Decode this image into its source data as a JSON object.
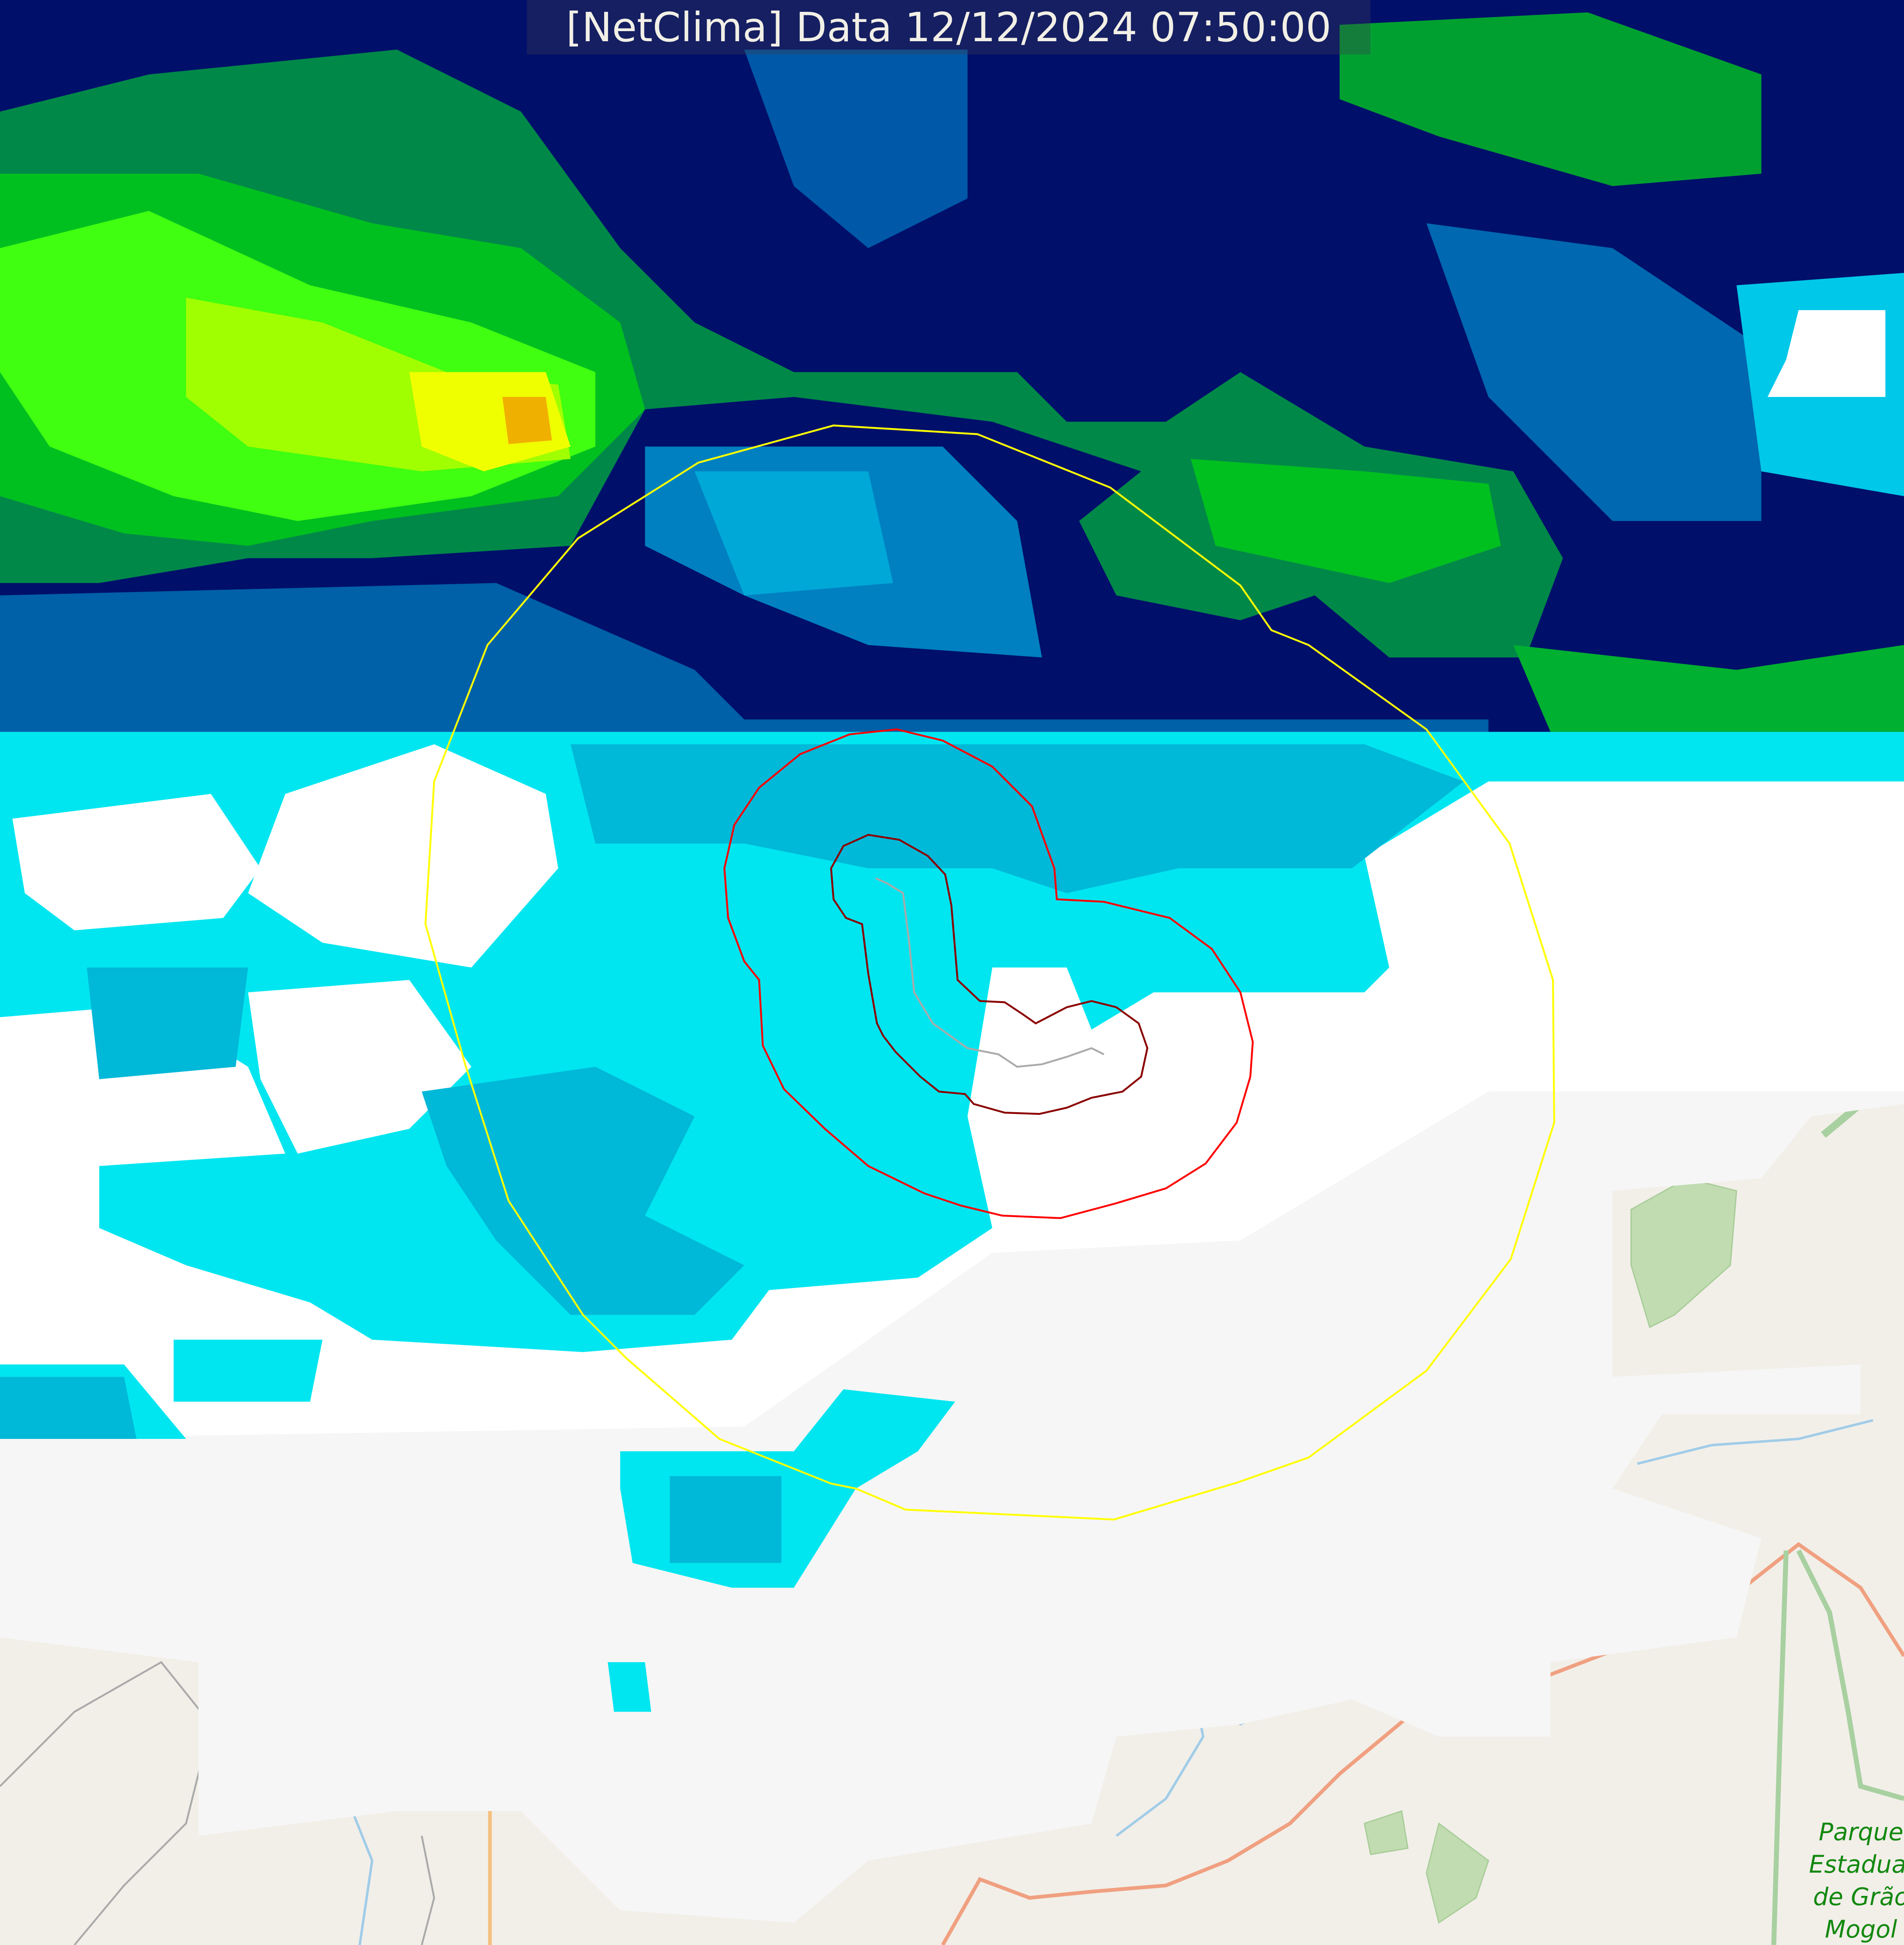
{
  "title": "[NetClima] Data 12/12/2024 07:50:00",
  "map_labels": {
    "park": "Parque Estadual de Grão Mogol"
  },
  "overlays": {
    "outer_ring_color": "#ffff00",
    "middle_ring_color": "#ff0000",
    "inner_ring_color": "#8b0000",
    "track_color": "#aaaaaa"
  },
  "palette": {
    "dark_blue": "#000a6e",
    "blue": "#0050a0",
    "cyan": "#00e6f0",
    "green": "#00c020",
    "yellow": "#f0ff00",
    "orange": "#f0b000",
    "cloud_white": "#f8f8f8",
    "base_map": "#f2efe9",
    "park_green": "#c0dcb0",
    "road": "#f0a080",
    "river": "#a0cce8"
  }
}
